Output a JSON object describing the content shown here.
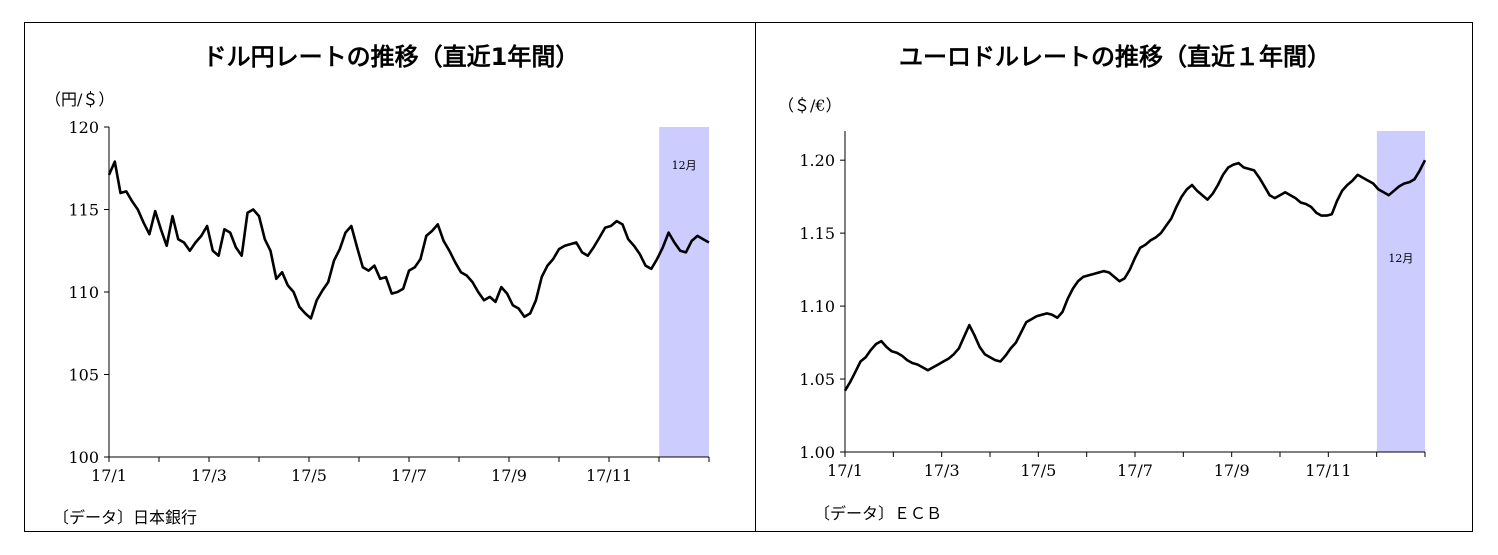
{
  "chart_data": [
    {
      "type": "line",
      "title": "ドル円レートの推移（直近1年間）",
      "ylabel": "（円/＄）",
      "source": "〔データ〕日本銀行",
      "ylim": [
        100,
        120
      ],
      "yticks": [
        "120",
        "115",
        "110",
        "105",
        "100"
      ],
      "xticks": [
        "17/1",
        "17/3",
        "17/5",
        "17/7",
        "17/9",
        "17/11"
      ],
      "shaded_label": "12月",
      "series": [
        {
          "values": [
            117.1,
            117.9,
            116.0,
            116.1,
            115.5,
            115.0,
            114.2,
            113.5,
            114.9,
            113.8,
            112.8,
            114.6,
            113.2,
            113.0,
            112.5,
            113.0,
            113.4,
            114.0,
            112.5,
            112.2,
            113.8,
            113.6,
            112.7,
            112.2,
            114.8,
            115.0,
            114.6,
            113.2,
            112.5,
            110.8,
            111.2,
            110.4,
            110.0,
            109.1,
            108.7,
            108.4,
            109.5,
            110.1,
            110.6,
            111.9,
            112.6,
            113.6,
            114.0,
            112.7,
            111.5,
            111.3,
            111.6,
            110.8,
            110.9,
            109.9,
            110.0,
            110.2,
            111.3,
            111.5,
            112.0,
            113.4,
            113.7,
            114.1,
            113.1,
            112.5,
            111.8,
            111.2,
            111.0,
            110.6,
            110.0,
            109.5,
            109.7,
            109.4,
            110.3,
            109.9,
            109.2,
            109.0,
            108.5,
            108.7,
            109.5,
            110.9,
            111.6,
            112.0,
            112.6,
            112.8,
            112.9,
            113.0,
            112.4,
            112.2,
            112.7,
            113.3,
            113.9,
            114.0,
            114.3,
            114.1,
            113.2,
            112.8,
            112.3,
            111.6,
            111.4,
            112.0,
            112.7,
            113.6,
            113.0,
            112.5,
            112.4,
            113.1,
            113.4,
            113.2,
            113.0
          ]
        }
      ]
    },
    {
      "type": "line",
      "title": "ユーロドルレートの推移（直近１年間）",
      "ylabel": "（＄/€）",
      "source": "〔データ〕ＥＣＢ",
      "ylim": [
        1.0,
        1.22
      ],
      "yticks": [
        "1.20",
        "1.15",
        "1.10",
        "1.05",
        "1.00"
      ],
      "xticks": [
        "17/1",
        "17/3",
        "17/5",
        "17/7",
        "17/9",
        "17/11"
      ],
      "shaded_label": "12月",
      "series": [
        {
          "values": [
            1.042,
            1.048,
            1.055,
            1.062,
            1.065,
            1.07,
            1.074,
            1.076,
            1.072,
            1.069,
            1.068,
            1.066,
            1.063,
            1.061,
            1.06,
            1.058,
            1.056,
            1.058,
            1.06,
            1.062,
            1.064,
            1.067,
            1.071,
            1.079,
            1.087,
            1.08,
            1.072,
            1.067,
            1.065,
            1.063,
            1.062,
            1.066,
            1.071,
            1.075,
            1.082,
            1.089,
            1.091,
            1.093,
            1.094,
            1.095,
            1.094,
            1.092,
            1.096,
            1.105,
            1.112,
            1.117,
            1.12,
            1.121,
            1.122,
            1.123,
            1.124,
            1.123,
            1.12,
            1.117,
            1.119,
            1.125,
            1.133,
            1.14,
            1.142,
            1.145,
            1.147,
            1.15,
            1.155,
            1.16,
            1.168,
            1.175,
            1.18,
            1.183,
            1.179,
            1.176,
            1.173,
            1.177,
            1.183,
            1.19,
            1.195,
            1.197,
            1.198,
            1.195,
            1.194,
            1.193,
            1.188,
            1.182,
            1.176,
            1.174,
            1.176,
            1.178,
            1.176,
            1.174,
            1.171,
            1.17,
            1.168,
            1.164,
            1.162,
            1.162,
            1.163,
            1.172,
            1.179,
            1.183,
            1.186,
            1.19,
            1.188,
            1.186,
            1.184,
            1.18,
            1.178,
            1.176,
            1.179,
            1.182,
            1.184,
            1.185,
            1.187,
            1.193,
            1.2
          ]
        }
      ]
    }
  ]
}
